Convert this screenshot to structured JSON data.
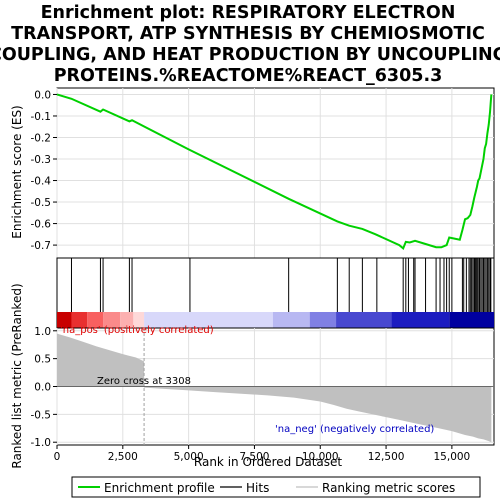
{
  "chart_data": {
    "type": "line",
    "title_lines": [
      "Enrichment plot: RESPIRATORY ELECTRON",
      "TRANSPORT, ATP SYNTHESIS BY CHEMIOSMOTIC",
      "COUPLING, AND HEAT PRODUCTION BY UNCOUPLING",
      "PROTEINS.%REACTOME%REACT_6305.3"
    ],
    "top_ylabel": "Enrichment score (ES)",
    "bottom_ylabel": "Ranked list metric (PreRanked)",
    "xlabel": "Rank in Ordered Dataset",
    "xlim": [
      0,
      16600
    ],
    "x_ticks": [
      0,
      2500,
      5000,
      7500,
      10000,
      12500,
      15000
    ],
    "x_tick_labels": [
      "0",
      "2,500",
      "5,000",
      "7,500",
      "10,000",
      "12,500",
      "15,000"
    ],
    "es_ylim": [
      -0.76,
      0.03
    ],
    "es_ticks": [
      0.0,
      -0.1,
      -0.2,
      -0.3,
      -0.4,
      -0.5,
      -0.6,
      -0.7
    ],
    "es_tick_labels": [
      "0.0",
      "-0.1",
      "-0.2",
      "-0.3",
      "-0.4",
      "-0.5",
      "-0.6",
      "-0.7"
    ],
    "metric_ylim": [
      -1.05,
      1.05
    ],
    "metric_ticks": [
      1.0,
      0.5,
      0.0,
      -0.5,
      -1.0
    ],
    "metric_tick_labels": [
      "1.0",
      "0.5",
      "0.0",
      "-0.5",
      "-1.0"
    ],
    "enrichment_profile": {
      "name": "Enrichment profile",
      "x": [
        0,
        550,
        1650,
        1750,
        2750,
        2850,
        5000,
        8800,
        10650,
        11100,
        11600,
        12100,
        13000,
        13150,
        13250,
        13400,
        13600,
        14000,
        14400,
        14600,
        14800,
        14900,
        15100,
        15300,
        15400,
        15500,
        15600,
        15700,
        15780,
        15850,
        15900,
        15950,
        16000,
        16050,
        16100,
        16150,
        16200,
        16250,
        16300,
        16350,
        16400,
        16450,
        16480,
        16500
      ],
      "y": [
        0.0,
        -0.02,
        -0.08,
        -0.07,
        -0.125,
        -0.12,
        -0.255,
        -0.485,
        -0.59,
        -0.61,
        -0.625,
        -0.65,
        -0.7,
        -0.715,
        -0.685,
        -0.688,
        -0.68,
        -0.695,
        -0.71,
        -0.71,
        -0.7,
        -0.665,
        -0.67,
        -0.675,
        -0.63,
        -0.58,
        -0.575,
        -0.56,
        -0.52,
        -0.48,
        -0.455,
        -0.43,
        -0.4,
        -0.39,
        -0.36,
        -0.33,
        -0.3,
        -0.25,
        -0.23,
        -0.18,
        -0.14,
        -0.08,
        -0.03,
        0.0
      ]
    },
    "hits": [
      550,
      1650,
      1750,
      2750,
      2850,
      5050,
      8800,
      10650,
      11100,
      11600,
      12150,
      13150,
      13250,
      13350,
      13550,
      13600,
      14000,
      14400,
      14550,
      14700,
      14800,
      14900,
      15000,
      15400,
      15450,
      15550,
      15650,
      15700,
      15750,
      15800,
      15850,
      15880,
      15920,
      15960,
      16000,
      16050,
      16100,
      16150,
      16200,
      16250,
      16300,
      16350,
      16400,
      16450,
      16480
    ],
    "ranking_metric": {
      "name": "Ranking metric scores",
      "x": [
        0,
        500,
        1000,
        1500,
        2000,
        2500,
        3000,
        3308,
        3309,
        4000,
        5000,
        6000,
        7000,
        8000,
        9000,
        10000,
        10500,
        11000,
        11500,
        12000,
        12500,
        13000,
        13500,
        14000,
        14500,
        15000,
        15500,
        15800,
        16000,
        16200,
        16400,
        16500
      ],
      "y": [
        0.95,
        0.88,
        0.8,
        0.72,
        0.65,
        0.58,
        0.52,
        0.45,
        -0.02,
        -0.04,
        -0.07,
        -0.1,
        -0.13,
        -0.16,
        -0.2,
        -0.27,
        -0.33,
        -0.4,
        -0.45,
        -0.5,
        -0.55,
        -0.6,
        -0.65,
        -0.7,
        -0.75,
        -0.8,
        -0.87,
        -0.9,
        -0.93,
        -0.95,
        -0.98,
        -1.0
      ]
    },
    "zero_cross_label": "Zero cross at 3308",
    "zero_cross_rank": 3308,
    "positive_label": "'na_pos' (positively correlated)",
    "negative_label": "'na_neg' (negatively correlated)",
    "legend": [
      "Enrichment profile",
      "Hits",
      "Ranking metric scores"
    ],
    "legend_placement": "bottom",
    "colors": {
      "profile": "#00d000",
      "hits": "#000000",
      "metric_fill": "#c0c0c0",
      "positive_text": "#e00000",
      "negative_text": "#0000c0",
      "zero_cross_line": "#a0a0a0",
      "grid": "#e0e0e0"
    },
    "color_bar": [
      {
        "from": 0,
        "to": 550,
        "color": "#c80000"
      },
      {
        "from": 550,
        "to": 1150,
        "color": "#e83030"
      },
      {
        "from": 1150,
        "to": 1750,
        "color": "#f86060"
      },
      {
        "from": 1750,
        "to": 2400,
        "color": "#fa8a8a"
      },
      {
        "from": 2400,
        "to": 2900,
        "color": "#fcb0b0"
      },
      {
        "from": 2900,
        "to": 3308,
        "color": "#fed8d8"
      },
      {
        "from": 3308,
        "to": 8200,
        "color": "#d8d8fa"
      },
      {
        "from": 8200,
        "to": 9600,
        "color": "#b8b8f2"
      },
      {
        "from": 9600,
        "to": 10600,
        "color": "#8080e4"
      },
      {
        "from": 10600,
        "to": 12700,
        "color": "#4848d0"
      },
      {
        "from": 12700,
        "to": 14900,
        "color": "#1c1cc0"
      },
      {
        "from": 14900,
        "to": 16600,
        "color": "#0000a0"
      }
    ]
  }
}
